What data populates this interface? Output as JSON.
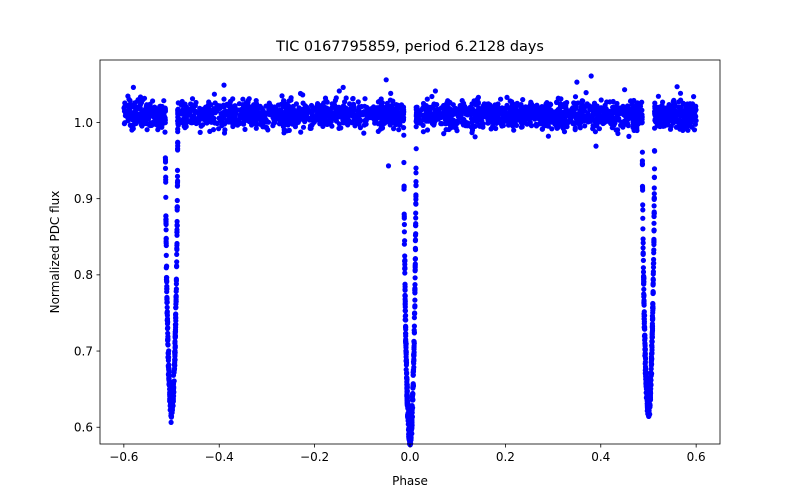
{
  "chart_data": {
    "type": "scatter",
    "title": "TIC 0167795859, period 6.2128 days",
    "xlabel": "Phase",
    "ylabel": "Normalized PDC flux",
    "xlim": [
      -0.65,
      0.65
    ],
    "ylim": [
      0.578,
      1.082
    ],
    "xticks": [
      -0.6,
      -0.4,
      -0.2,
      0.0,
      0.2,
      0.4,
      0.6
    ],
    "xtick_labels": [
      "−0.6",
      "−0.4",
      "−0.2",
      "0.0",
      "0.2",
      "0.4",
      "0.6"
    ],
    "yticks": [
      0.6,
      0.7,
      0.8,
      0.9,
      1.0
    ],
    "ytick_labels": [
      "0.6",
      "0.7",
      "0.8",
      "0.9",
      "1.0"
    ],
    "grid": false,
    "marker_color": "#0000ff",
    "baseline_flux": 1.01,
    "phase_range": [
      -0.6,
      0.6
    ],
    "eclipses": [
      {
        "name": "secondary",
        "phase": -0.5,
        "min_flux": 0.627,
        "halfwidth": 0.013
      },
      {
        "name": "primary",
        "phase": 0.0,
        "min_flux": 0.588,
        "halfwidth": 0.013
      },
      {
        "name": "secondary",
        "phase": 0.5,
        "min_flux": 0.627,
        "halfwidth": 0.013
      }
    ],
    "outliers": [
      {
        "x": -0.045,
        "y": 0.943
      },
      {
        "x": -0.05,
        "y": 1.056
      },
      {
        "x": 0.38,
        "y": 1.061
      },
      {
        "x": 0.35,
        "y": 1.053
      },
      {
        "x": -0.39,
        "y": 1.049
      },
      {
        "x": -0.58,
        "y": 1.046
      },
      {
        "x": 0.56,
        "y": 1.047
      },
      {
        "x": 0.39,
        "y": 0.969
      },
      {
        "x": 0.45,
        "y": 1.043
      },
      {
        "x": -0.14,
        "y": 1.046
      }
    ]
  }
}
